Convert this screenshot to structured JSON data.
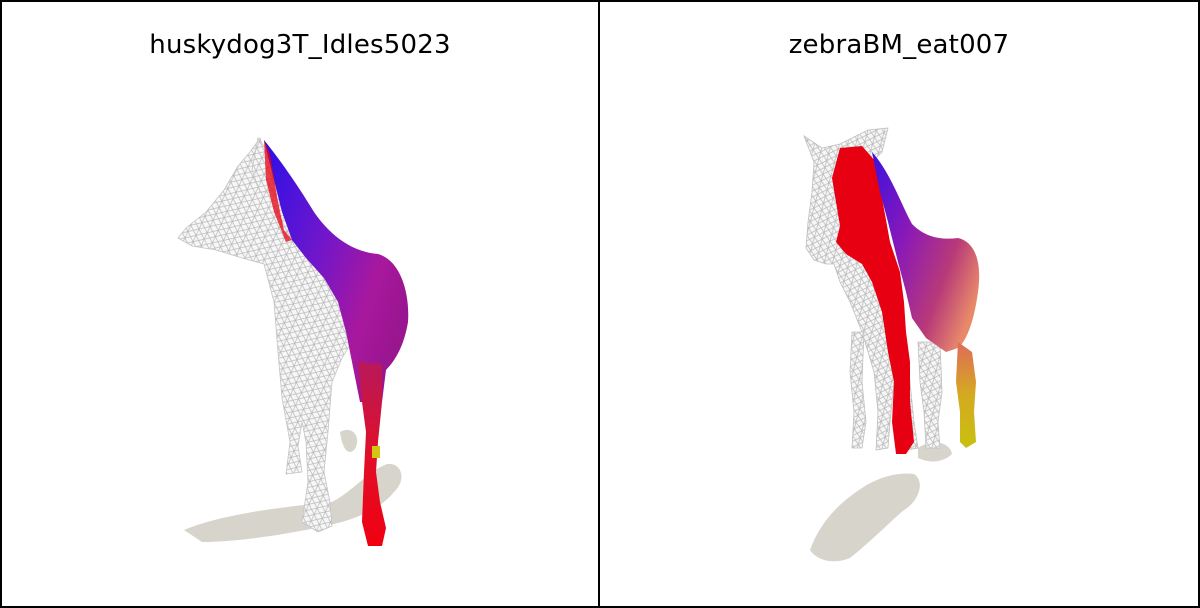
{
  "panels": [
    {
      "title": "huskydog3T_Idles5023",
      "subject": "husky-dog-mesh"
    },
    {
      "title": "zebraBM_eat007",
      "subject": "zebra-mesh"
    }
  ],
  "colors": {
    "shadow": "#d7d4cc",
    "mesh_wire": "#bdbdbd",
    "blue": "#2a10e8",
    "purple": "#8a18b8",
    "magenta": "#b0189a",
    "red": "#e60012",
    "yellow": "#d4c414",
    "salmon": "#e88a6a"
  }
}
